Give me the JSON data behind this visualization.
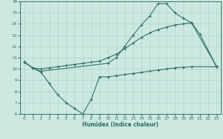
{
  "xlabel": "Humidex (Indice chaleur)",
  "bg_color": "#cce8e0",
  "grid_color": "#aad4cc",
  "line_color": "#2a6e60",
  "line1_x": [
    0,
    1,
    2,
    10,
    11,
    12,
    13,
    14,
    15,
    16,
    17,
    18,
    19,
    20,
    21,
    23
  ],
  "line1_y": [
    10.6,
    10.1,
    9.8,
    10.5,
    11.0,
    12.0,
    13.0,
    13.9,
    14.7,
    15.8,
    15.8,
    15.0,
    14.5,
    14.1,
    13.1,
    10.2
  ],
  "line2_x": [
    0,
    1,
    2,
    3,
    4,
    5,
    6,
    7,
    8,
    9,
    10,
    11,
    12,
    13,
    14,
    15,
    16,
    17,
    18,
    19,
    20,
    23
  ],
  "line2_y": [
    10.6,
    10.1,
    10.0,
    10.1,
    10.2,
    10.3,
    10.4,
    10.5,
    10.6,
    10.7,
    11.0,
    11.3,
    11.8,
    12.3,
    12.8,
    13.2,
    13.5,
    13.7,
    13.9,
    14.0,
    14.1,
    10.2
  ],
  "line3_x": [
    0,
    1,
    2,
    3,
    4,
    5,
    6,
    7,
    8,
    9,
    10,
    11,
    12,
    13,
    14,
    15,
    16,
    17,
    18,
    19,
    20,
    23
  ],
  "line3_y": [
    10.6,
    10.1,
    9.7,
    8.7,
    7.7,
    7.0,
    6.5,
    6.0,
    7.3,
    9.3,
    9.3,
    9.4,
    9.5,
    9.6,
    9.7,
    9.8,
    9.9,
    10.0,
    10.1,
    10.15,
    10.2,
    10.2
  ],
  "xlim": [
    -0.5,
    23.5
  ],
  "ylim": [
    6,
    16
  ],
  "yticks": [
    6,
    7,
    8,
    9,
    10,
    11,
    12,
    13,
    14,
    15,
    16
  ],
  "xticks": [
    0,
    1,
    2,
    3,
    4,
    5,
    6,
    7,
    8,
    9,
    10,
    11,
    12,
    13,
    14,
    15,
    16,
    17,
    18,
    19,
    20,
    21,
    22,
    23
  ]
}
